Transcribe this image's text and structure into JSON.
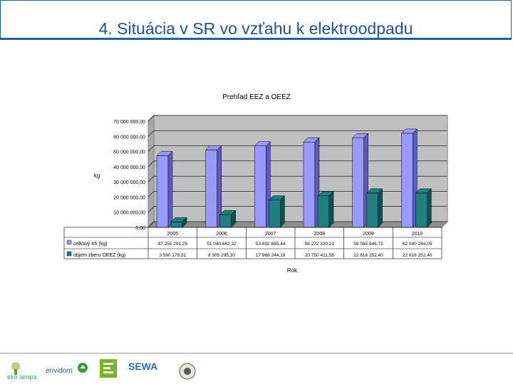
{
  "slide_title": "4. Situácia v SR vo vzťahu k elektroodpadu",
  "chart_data": {
    "type": "bar",
    "title": "Prehľad EEZ a OEEZ",
    "xlabel": "Rok",
    "ylabel": "kg",
    "ylim": [
      0,
      70000000
    ],
    "yticks": [
      "70 000 000,00",
      "60 000 000,00",
      "50 000 000,00",
      "40 000 000,00",
      "30 000 000,00",
      "20 000 000,00",
      "10 000 000,00",
      "0,00"
    ],
    "categories": [
      "2005",
      "2006",
      "2007",
      "2008",
      "2009",
      "2010"
    ],
    "series": [
      {
        "name": "celkový trh (kg)",
        "color": "#9999ff",
        "values": [
          47255291.25,
          51040662.32,
          53692695.44,
          56272330.21,
          59085946.72,
          62040244.05
        ],
        "labels": [
          "47 255 291,25",
          "51 040 662,32",
          "53 692 695,44",
          "56 272 330,21",
          "59 085 946,72",
          "62 040 244,05"
        ]
      },
      {
        "name": "objem zberu OEEZ (kg)",
        "color": "#1f8080",
        "values": [
          3590178.51,
          8305295.3,
          17968244.19,
          20750411.58,
          22616252.4,
          22616252.4
        ],
        "labels": [
          "3 590 178,51",
          "8 305 295,30",
          "17 968 244,19",
          "20 750 411,58",
          "22 616 252,40",
          "22 616 252,40"
        ]
      }
    ]
  },
  "footer": {
    "logos": [
      "eko lampa",
      "envidom",
      "SEWA"
    ],
    "logo_icons": [
      "recycle-icon",
      "ekolamp-icon",
      "sewa-emblem-icon"
    ]
  }
}
